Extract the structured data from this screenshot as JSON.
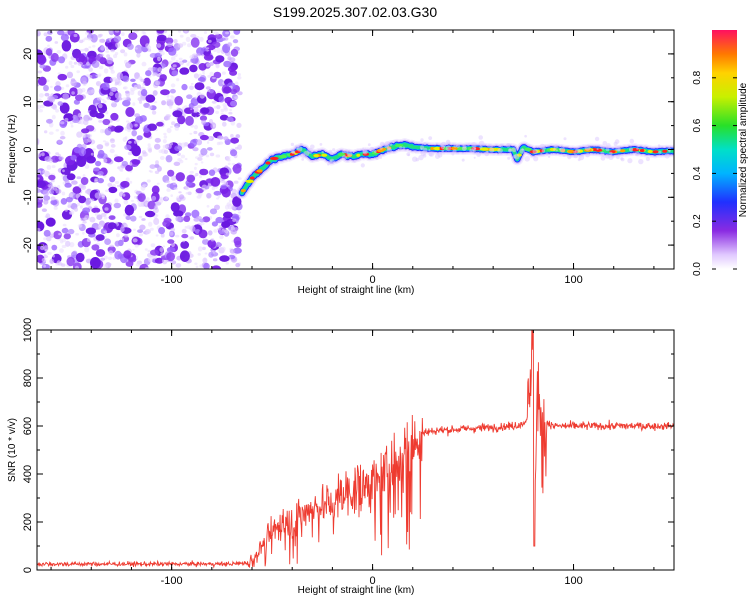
{
  "title": "S199.2025.307.02.03.G30",
  "chart_data": [
    {
      "type": "heatmap",
      "name": "spectrogram",
      "xlabel": "Height of straight line (km)",
      "ylabel": "Frequency (Hz)",
      "xlim": [
        -167,
        150
      ],
      "ylim": [
        -25,
        25
      ],
      "xticks": [
        -100,
        0,
        100
      ],
      "xtick_labels": [
        "-100",
        "0",
        "100"
      ],
      "yticks": [
        -20,
        -10,
        0,
        10,
        20
      ],
      "ytick_labels": [
        "-20",
        "-10",
        "0",
        "10",
        "20"
      ],
      "noise_region_x": [
        -167,
        -64
      ],
      "signal_ridge": {
        "x": [
          -65,
          -60,
          -55,
          -50,
          -45,
          -40,
          -35,
          -30,
          -25,
          -20,
          -15,
          -10,
          -5,
          0,
          5,
          10,
          15,
          20,
          30,
          40,
          50,
          60,
          70,
          72,
          75,
          80,
          90,
          100,
          110,
          120,
          130,
          140,
          148
        ],
        "y": [
          -9,
          -6,
          -4,
          -2,
          -1.5,
          -1,
          0,
          -1.5,
          -1,
          -2,
          -1,
          -1.5,
          -1,
          -1,
          0,
          0.5,
          1,
          0.5,
          0.2,
          0.2,
          0.2,
          0,
          0,
          -2,
          0.5,
          -0.5,
          0,
          -0.5,
          0,
          -0.5,
          0,
          -0.5,
          -0.3
        ]
      },
      "colorbar": {
        "label": "Normalized spectral amplitude",
        "range": [
          0,
          1
        ],
        "ticks": [
          0,
          0.2,
          0.4,
          0.6,
          0.8
        ],
        "tick_labels": [
          "0.0",
          "0.2",
          "0.4",
          "0.6",
          "0.8"
        ]
      }
    },
    {
      "type": "line",
      "name": "snr",
      "xlabel": "Height of straight line (km)",
      "ylabel": "SNR (10 * v/v)",
      "xlim": [
        -167,
        150
      ],
      "ylim": [
        0,
        1000
      ],
      "xticks": [
        -100,
        0,
        100
      ],
      "xtick_labels": [
        "-100",
        "0",
        "100"
      ],
      "yticks": [
        0,
        200,
        400,
        600,
        800,
        1000
      ],
      "ytick_labels": [
        "0",
        "200",
        "400",
        "600",
        "800",
        "1000"
      ],
      "color": "#ee3b30",
      "series": [
        {
          "name": "SNR",
          "x": [
            -167,
            -150,
            -130,
            -110,
            -90,
            -70,
            -62,
            -58,
            -55,
            -50,
            -45,
            -40,
            -35,
            -30,
            -25,
            -20,
            -15,
            -10,
            -5,
            0,
            5,
            10,
            15,
            20,
            25,
            30,
            40,
            50,
            60,
            70,
            75,
            78,
            79,
            80,
            81,
            82,
            84,
            86,
            90,
            100,
            110,
            120,
            130,
            140,
            150
          ],
          "y": [
            25,
            25,
            25,
            25,
            25,
            25,
            30,
            60,
            110,
            160,
            200,
            210,
            230,
            260,
            270,
            280,
            320,
            330,
            350,
            360,
            390,
            440,
            490,
            540,
            570,
            580,
            585,
            590,
            595,
            600,
            610,
            650,
            850,
            1000,
            300,
            800,
            500,
            620,
            600,
            600,
            600,
            600,
            600,
            600,
            600
          ]
        }
      ]
    }
  ]
}
